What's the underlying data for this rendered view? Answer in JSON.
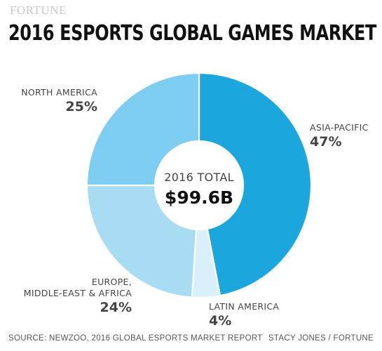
{
  "brand": "FORTUNE",
  "chart_data": {
    "type": "pie",
    "title": "2016 ESPORTS GLOBAL GAMES MARKET",
    "center_caption": "2016 TOTAL",
    "center_value": "$99.6B",
    "slices": [
      {
        "label": "ASIA-PACIFIC",
        "value": 47,
        "value_label": "47%",
        "color": "#1ba6de"
      },
      {
        "label": "LATIN AMERICA",
        "value": 4,
        "value_label": "4%",
        "color": "#d9effa"
      },
      {
        "label": "EUROPE, MIDDLE-EAST & AFRICA",
        "label_lines": [
          "EUROPE,",
          "MIDDLE-EAST & AFRICA"
        ],
        "value": 24,
        "value_label": "24%",
        "color": "#a8dcf2"
      },
      {
        "label": "NORTH AMERICA",
        "value": 25,
        "value_label": "25%",
        "color": "#7ccdef"
      }
    ]
  },
  "footer": {
    "source": "SOURCE: NEWZOO, 2016 GLOBAL ESPORTS MARKET REPORT",
    "credit": "STACY JONES / FORTUNE"
  }
}
